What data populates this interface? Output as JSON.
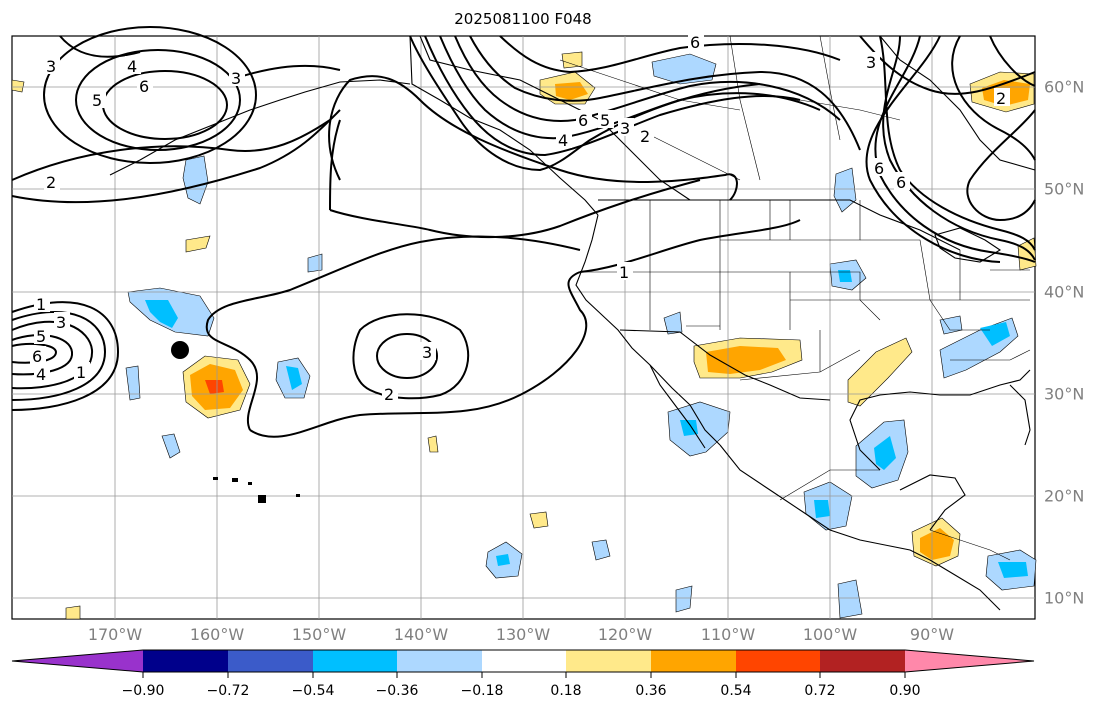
{
  "title": "2025081100 F048",
  "lon_labels": [
    "170°W",
    "160°W",
    "150°W",
    "140°W",
    "130°W",
    "120°W",
    "110°W",
    "100°W",
    "90°W"
  ],
  "lat_labels": [
    "60°N",
    "50°N",
    "40°N",
    "30°N",
    "20°N",
    "10°N"
  ],
  "colorbar": {
    "tick_labels": [
      "−0.90",
      "−0.72",
      "−0.54",
      "−0.36",
      "−0.18",
      "0.18",
      "0.36",
      "0.54",
      "0.72",
      "0.90"
    ],
    "colors": [
      "#9932cc",
      "#00008b",
      "#3b5bc9",
      "#00bfff",
      "#add8ff",
      "#ffffff",
      "#ffe98a",
      "#ffa500",
      "#ff4500",
      "#b22222",
      "#ff88aa"
    ]
  },
  "contour_labels": [
    "3",
    "4",
    "5",
    "6",
    "3",
    "2",
    "6",
    "4",
    "6",
    "5",
    "3",
    "2",
    "3",
    "6",
    "6",
    "2",
    "1",
    "3",
    "5",
    "6",
    "4",
    "1",
    "3",
    "2",
    "1"
  ],
  "marker": "point"
}
